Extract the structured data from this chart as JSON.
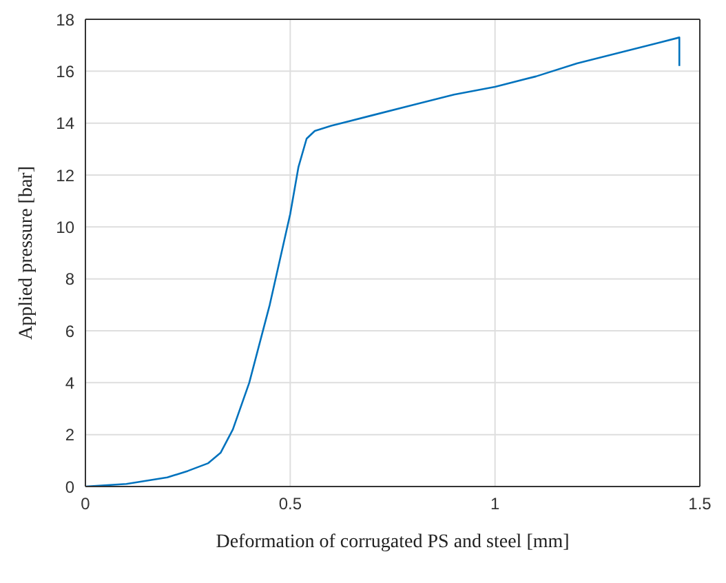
{
  "chart_data": {
    "type": "line",
    "xlabel": "Deformation of corrugated PS and steel [mm]",
    "ylabel": "Applied pressure [bar]",
    "series": [
      {
        "color": "#0072bd",
        "x": [
          0,
          0.1,
          0.2,
          0.25,
          0.3,
          0.33,
          0.36,
          0.4,
          0.45,
          0.5,
          0.52,
          0.54,
          0.56,
          0.6,
          0.7,
          0.8,
          0.9,
          1.0,
          1.1,
          1.2,
          1.3,
          1.4,
          1.45,
          1.45
        ],
        "values": [
          0,
          0.1,
          0.35,
          0.6,
          0.9,
          1.3,
          2.2,
          4,
          7,
          10.5,
          12.3,
          13.4,
          13.7,
          13.9,
          14.3,
          14.7,
          15.1,
          15.4,
          15.8,
          16.3,
          16.7,
          17.1,
          17.3,
          16.2
        ]
      }
    ],
    "xlim": [
      0,
      1.5
    ],
    "xticks": [
      0,
      0.5,
      1,
      1.5
    ],
    "ylim": [
      0,
      18
    ],
    "yticks": [
      0,
      2,
      4,
      6,
      8,
      10,
      12,
      14,
      16,
      18
    ],
    "grid": true,
    "legend": false,
    "marker": "none",
    "line_style": "solid"
  }
}
